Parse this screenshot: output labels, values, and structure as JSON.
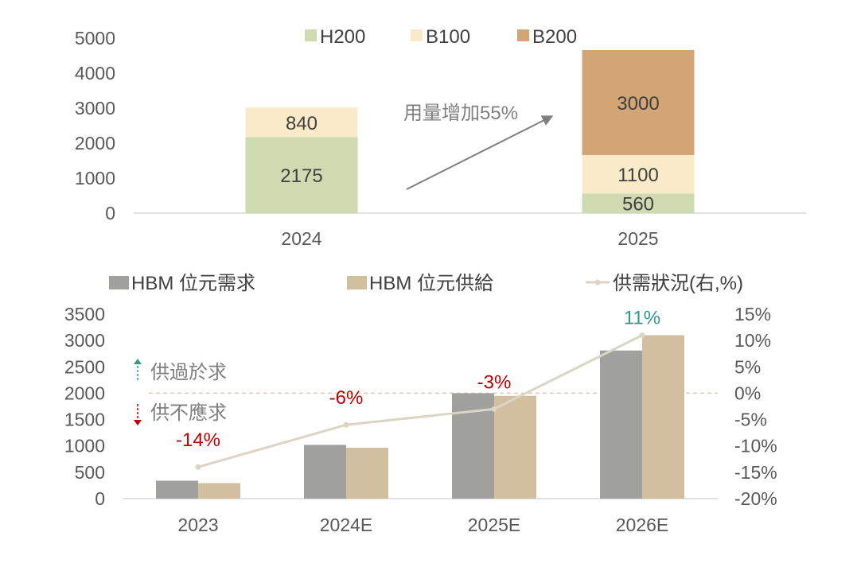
{
  "chart_data": [
    {
      "type": "bar",
      "stacked": true,
      "categories": [
        "2024",
        "2025"
      ],
      "series": [
        {
          "name": "H200",
          "values": [
            2175,
            560
          ],
          "color": "#cfdab0"
        },
        {
          "name": "B100",
          "values": [
            840,
            1100
          ],
          "color": "#faebc8"
        },
        {
          "name": "B200",
          "values": [
            0,
            3000
          ],
          "color": "#d4a574"
        }
      ],
      "ylim": [
        0,
        5000
      ],
      "yticks": [
        "0",
        "1000",
        "2000",
        "3000",
        "4000",
        "5000"
      ],
      "annotation": "用量增加55%",
      "legend": "top"
    },
    {
      "type": "bar",
      "categories": [
        "2023",
        "2024E",
        "2025E",
        "2026E"
      ],
      "series": [
        {
          "name": "HBM 位元需求",
          "values": [
            340,
            1020,
            2000,
            2810
          ],
          "color": "#a0a09e"
        },
        {
          "name": "HBM 位元供給",
          "values": [
            295,
            965,
            1950,
            3100
          ],
          "color": "#d1bf9f"
        }
      ],
      "line": {
        "name": "供需狀況(右,%)",
        "values": [
          -14,
          -6,
          -3,
          11
        ],
        "labels": [
          "-14%",
          "-6%",
          "-3%",
          "11%"
        ],
        "label_colors": [
          "#c00000",
          "#c00000",
          "#c00000",
          "#2e9a8a"
        ],
        "color": "#ddd5c3"
      },
      "ylim": [
        0,
        3500
      ],
      "yticks": [
        "0",
        "500",
        "1000",
        "1500",
        "2000",
        "2500",
        "3000",
        "3500"
      ],
      "y2lim": [
        -20,
        15
      ],
      "y2ticks": [
        "-20%",
        "-15%",
        "-10%",
        "-5%",
        "0%",
        "5%",
        "10%",
        "15%"
      ],
      "annotations": {
        "surplus": "供過於求",
        "shortage": "供不應求"
      },
      "legend": "top"
    }
  ]
}
